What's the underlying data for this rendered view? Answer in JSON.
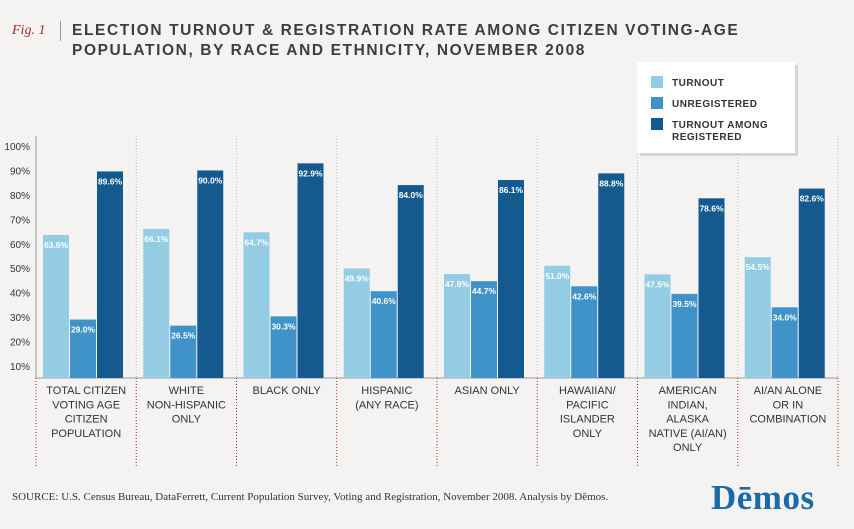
{
  "figure": {
    "label": "Fig. 1",
    "title": "ELECTION TURNOUT & REGISTRATION RATE AMONG CITIZEN VOTING-AGE POPULATION, BY RACE AND ETHNICITY, NOVEMBER 2008"
  },
  "source": "SOURCE:  U.S. Census Bureau, DataFerrett, Current Population Survey, Voting and Registration, November 2008. Analysis by Dēmos.",
  "logo": "Dēmos",
  "colors": {
    "turnout": "#93cce3",
    "unregistered": "#3f93c8",
    "turnout_among_registered": "#155a8e"
  },
  "chart_data": {
    "type": "bar",
    "title": "ELECTION TURNOUT & REGISTRATION RATE AMONG CITIZEN VOTING-AGE POPULATION, BY RACE AND ETHNICITY, NOVEMBER 2008",
    "categories": [
      [
        "TOTAL CITIZEN",
        "VOTING AGE",
        "CITIZEN",
        "POPULATION"
      ],
      [
        "WHITE",
        "NON-HISPANIC",
        "ONLY"
      ],
      [
        "BLACK ONLY"
      ],
      [
        "HISPANIC",
        "(ANY RACE)"
      ],
      [
        "ASIAN ONLY"
      ],
      [
        "HAWAIIAN/",
        "PACIFIC",
        "ISLANDER",
        "ONLY"
      ],
      [
        "AMERICAN",
        "INDIAN,",
        "ALASKA",
        "NATIVE (AI/AN)",
        "ONLY"
      ],
      [
        "AI/AN ALONE",
        "OR IN",
        "COMBINATION"
      ]
    ],
    "series": [
      {
        "name": "TURNOUT",
        "color": "#93cce3",
        "values": [
          63.6,
          66.1,
          64.7,
          49.9,
          47.6,
          51.0,
          47.5,
          54.5
        ]
      },
      {
        "name": "UNREGISTERED",
        "color": "#3f93c8",
        "values": [
          29.0,
          26.5,
          30.3,
          40.6,
          44.7,
          42.6,
          39.5,
          34.0
        ]
      },
      {
        "name": "TURNOUT AMONG REGISTERED",
        "color": "#155a8e",
        "values": [
          89.6,
          90.0,
          92.9,
          84.0,
          86.1,
          88.8,
          78.6,
          82.6
        ]
      }
    ],
    "yticks": [
      "10%",
      "20%",
      "30%",
      "40%",
      "50%",
      "60%",
      "70%",
      "80%",
      "90%",
      "100%"
    ],
    "ylim": [
      6,
      100
    ],
    "legend_position": "top-right",
    "grid": false
  }
}
